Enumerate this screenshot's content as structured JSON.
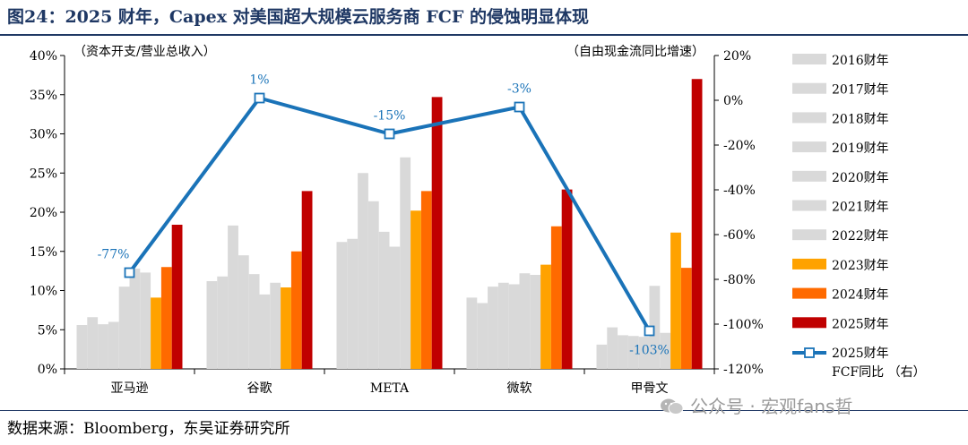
{
  "header": {
    "title": "图24：2025 财年，Capex 对美国超大规模云服务商 FCF 的侵蚀明显体现"
  },
  "footer": {
    "source": "数据来源：Bloomberg，东吴证券研究所",
    "watermark": "公众号 · 宏观fans哲"
  },
  "chart_data": {
    "type": "bar",
    "left_axis_note": "（资本开支/营业总收入）",
    "right_axis_note": "（自由现金流同比增速）",
    "categories": [
      "亚马逊",
      "谷歌",
      "META",
      "微软",
      "甲骨文"
    ],
    "y_left": {
      "min": 0,
      "max": 40,
      "step": 5,
      "tick_suffix": "%"
    },
    "y_right": {
      "min": -120,
      "max": 20,
      "step": 20,
      "tick_suffix": "%"
    },
    "series": [
      {
        "name": "2016财年",
        "color": "#d9d9d9",
        "values": [
          5.6,
          11.2,
          16.2,
          9.1,
          3.1
        ]
      },
      {
        "name": "2017财年",
        "color": "#d9d9d9",
        "values": [
          6.6,
          11.8,
          16.6,
          8.4,
          5.3
        ]
      },
      {
        "name": "2018财年",
        "color": "#d9d9d9",
        "values": [
          5.7,
          18.3,
          25.0,
          10.5,
          4.3
        ]
      },
      {
        "name": "2019财年",
        "color": "#d9d9d9",
        "values": [
          6.0,
          14.5,
          21.4,
          11.0,
          4.2
        ]
      },
      {
        "name": "2020财年",
        "color": "#d9d9d9",
        "values": [
          10.5,
          12.1,
          17.5,
          10.8,
          4.1
        ]
      },
      {
        "name": "2021财年",
        "color": "#d9d9d9",
        "values": [
          12.8,
          9.5,
          15.6,
          12.2,
          10.6
        ]
      },
      {
        "name": "2022财年",
        "color": "#d9d9d9",
        "values": [
          12.3,
          11.0,
          27.0,
          12.0,
          4.6
        ]
      },
      {
        "name": "2023财年",
        "color": "#ffa200",
        "values": [
          9.1,
          10.4,
          20.2,
          13.3,
          17.4
        ]
      },
      {
        "name": "2024财年",
        "color": "#ff6a00",
        "values": [
          13.0,
          15.0,
          22.7,
          18.2,
          12.9
        ]
      },
      {
        "name": "2025财年",
        "color": "#c00000",
        "values": [
          18.4,
          22.7,
          34.7,
          22.9,
          37.0
        ]
      }
    ],
    "line_series": {
      "name_line1": "2025财年",
      "name_line2": "FCF同比 （右）",
      "color": "#1a73b8",
      "values": [
        -77,
        1,
        -15,
        -3,
        -103
      ],
      "labels": [
        "-77%",
        "1%",
        "-15%",
        "-3%",
        "-103%"
      ]
    },
    "grid": false,
    "legend_position": "right"
  }
}
